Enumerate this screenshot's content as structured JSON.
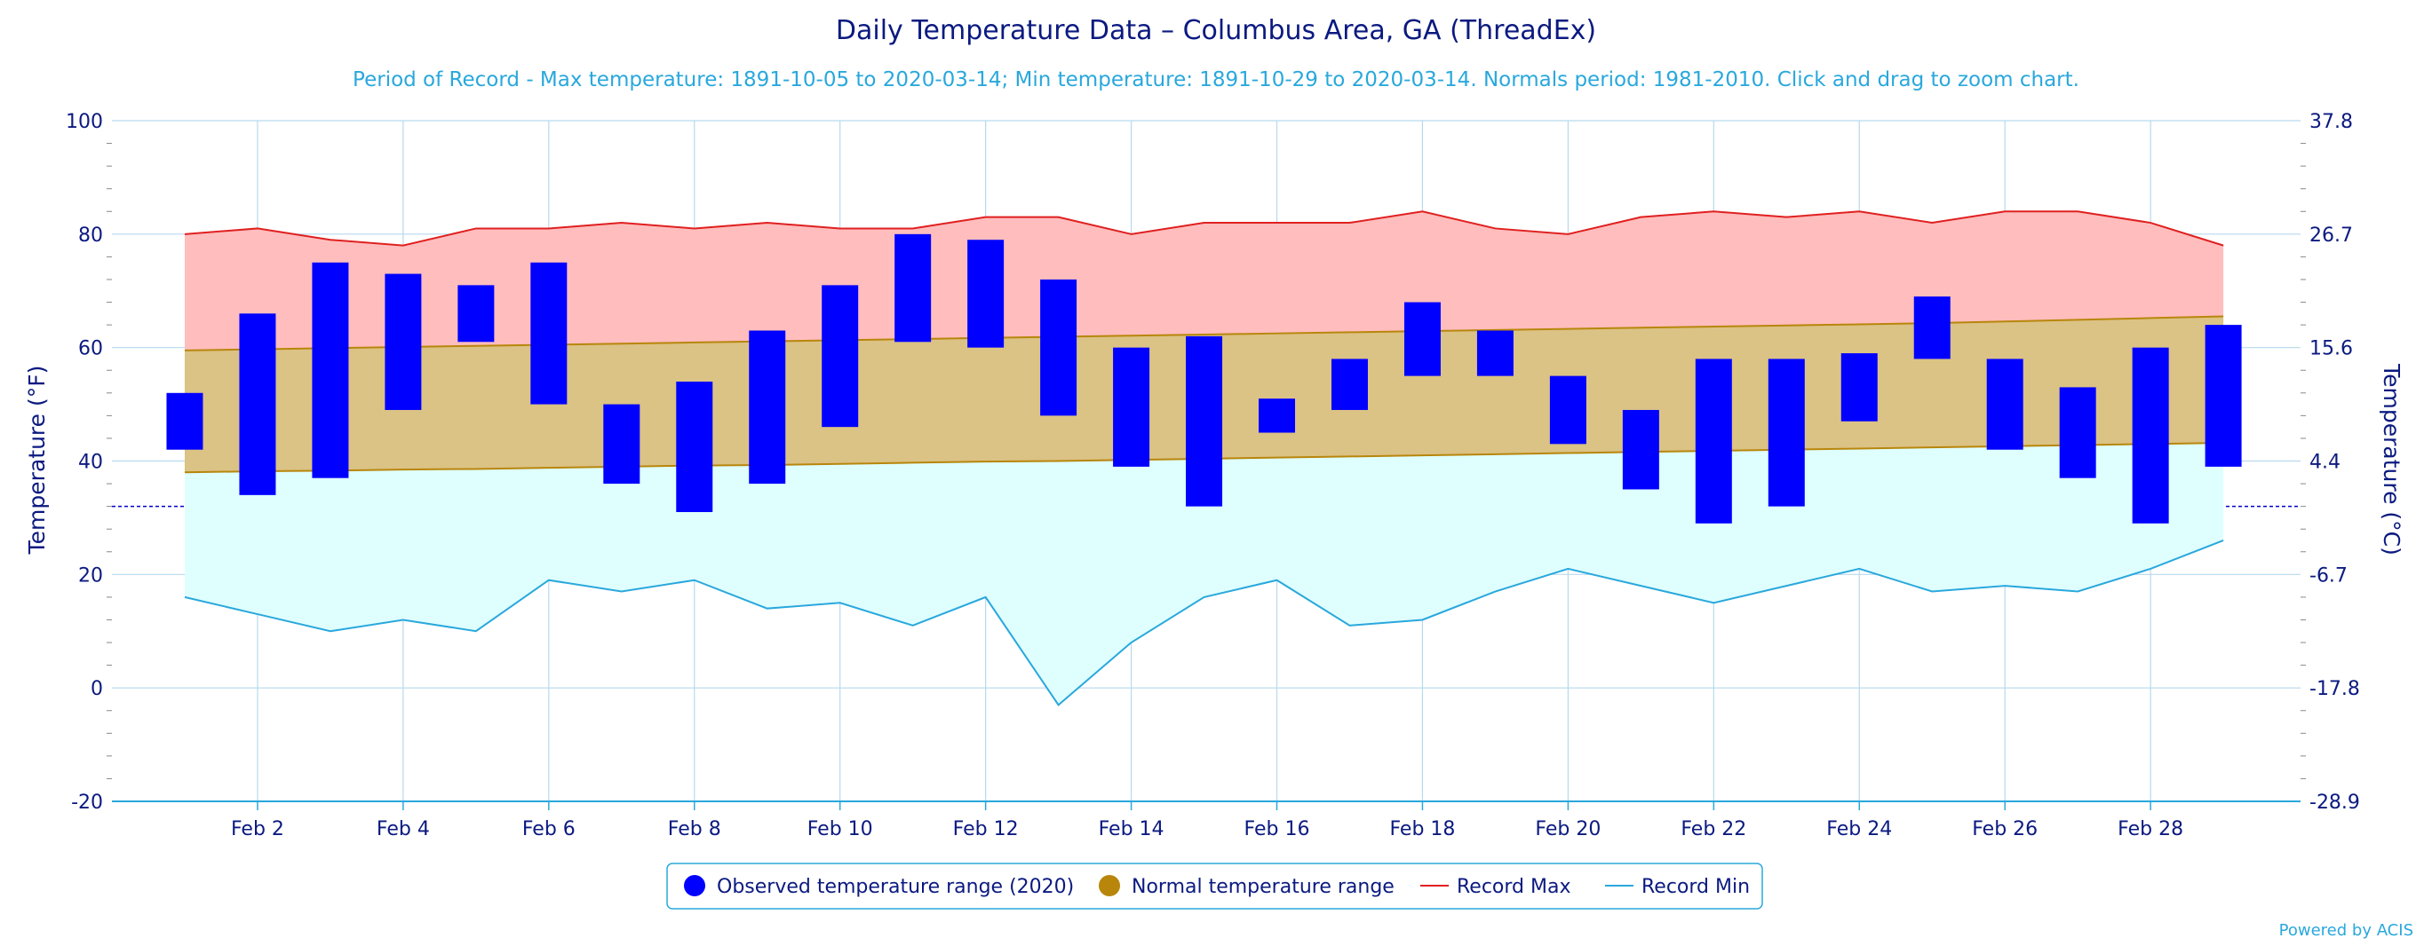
{
  "chart_data": {
    "type": "bar",
    "title": "Daily Temperature Data – Columbus Area, GA (ThreadEx)",
    "subtitle": "Period of Record - Max temperature: 1891-10-05 to 2020-03-14; Min temperature: 1891-10-29 to 2020-03-14. Normals period: 1981-2010. Click and drag to zoom chart.",
    "ylabel": "Temperature (°F)",
    "ylabel_right": "Temperature (°C)",
    "ylim": [
      -20,
      100
    ],
    "yticks": [
      -20,
      0,
      20,
      40,
      60,
      80,
      100
    ],
    "yticks_right": [
      "-28.9",
      "-17.8",
      "-6.7",
      "4.4",
      "15.6",
      "26.7",
      "37.8"
    ],
    "x_tick_labels": [
      "Feb 2",
      "Feb 4",
      "Feb 6",
      "Feb 8",
      "Feb 10",
      "Feb 12",
      "Feb 14",
      "Feb 16",
      "Feb 18",
      "Feb 20",
      "Feb 22",
      "Feb 24",
      "Feb 26",
      "Feb 28"
    ],
    "x_tick_days": [
      2,
      4,
      6,
      8,
      10,
      12,
      14,
      16,
      18,
      20,
      22,
      24,
      26,
      28
    ],
    "days": [
      1,
      2,
      3,
      4,
      5,
      6,
      7,
      8,
      9,
      10,
      11,
      12,
      13,
      14,
      15,
      16,
      17,
      18,
      19,
      20,
      21,
      22,
      23,
      24,
      25,
      26,
      27,
      28,
      29
    ],
    "freezing_line": 32,
    "grid": true,
    "legend_position": "bottom-center",
    "legend": [
      {
        "label": "Observed temperature range (2020)",
        "symbol": "circle",
        "color": "#0000ff"
      },
      {
        "label": "Normal temperature range",
        "symbol": "circle",
        "color": "#b8860b"
      },
      {
        "label": "Record Max",
        "symbol": "line",
        "color": "#e02020"
      },
      {
        "label": "Record Min",
        "symbol": "line",
        "color": "#29a8dc"
      }
    ],
    "series": [
      {
        "name": "Observed temperature range (2020)",
        "kind": "range-bar",
        "low": [
          42,
          34,
          37,
          49,
          61,
          50,
          36,
          31,
          36,
          46,
          61,
          60,
          48,
          39,
          32,
          45,
          49,
          55,
          55,
          43,
          35,
          29,
          32,
          47,
          58,
          42,
          37,
          29,
          39
        ],
        "high": [
          52,
          66,
          75,
          73,
          71,
          75,
          50,
          54,
          63,
          71,
          80,
          79,
          72,
          60,
          62,
          51,
          58,
          68,
          63,
          55,
          49,
          58,
          58,
          59,
          69,
          58,
          53,
          60,
          64
        ]
      },
      {
        "name": "Normal temperature range",
        "kind": "range-area",
        "low": [
          38.0,
          38.2,
          38.3,
          38.5,
          38.6,
          38.8,
          39.0,
          39.2,
          39.3,
          39.5,
          39.7,
          39.9,
          40.0,
          40.2,
          40.4,
          40.6,
          40.8,
          41.0,
          41.2,
          41.4,
          41.6,
          41.8,
          42.0,
          42.2,
          42.4,
          42.6,
          42.8,
          43.0,
          43.2
        ],
        "high": [
          59.5,
          59.7,
          59.9,
          60.1,
          60.3,
          60.5,
          60.7,
          60.9,
          61.1,
          61.3,
          61.5,
          61.7,
          61.9,
          62.1,
          62.3,
          62.5,
          62.7,
          62.9,
          63.1,
          63.3,
          63.5,
          63.7,
          63.9,
          64.1,
          64.3,
          64.6,
          64.9,
          65.2,
          65.5
        ]
      },
      {
        "name": "Record Max",
        "kind": "line",
        "values": [
          80,
          81,
          79,
          78,
          81,
          81,
          82,
          81,
          82,
          81,
          81,
          83,
          83,
          80,
          82,
          82,
          82,
          84,
          81,
          80,
          83,
          84,
          83,
          84,
          82,
          84,
          84,
          82,
          78
        ]
      },
      {
        "name": "Record Min",
        "kind": "line",
        "values": [
          16,
          13,
          10,
          12,
          10,
          19,
          17,
          19,
          14,
          15,
          11,
          16,
          -3,
          8,
          16,
          19,
          11,
          12,
          17,
          21,
          18,
          15,
          18,
          21,
          17,
          18,
          17,
          21,
          26
        ]
      }
    ]
  },
  "colors": {
    "observed": "#0000ff",
    "normal_fill": "#dbc285",
    "normal_stroke": "#b8860b",
    "record_max_fill": "#ffbdbd",
    "record_max_line": "#e02020",
    "record_min_fill": "#dfffff",
    "record_min_line": "#29a8dc",
    "grid": "#b8d9ee",
    "text": "#0b1a80"
  },
  "credit": "Powered by ACIS"
}
